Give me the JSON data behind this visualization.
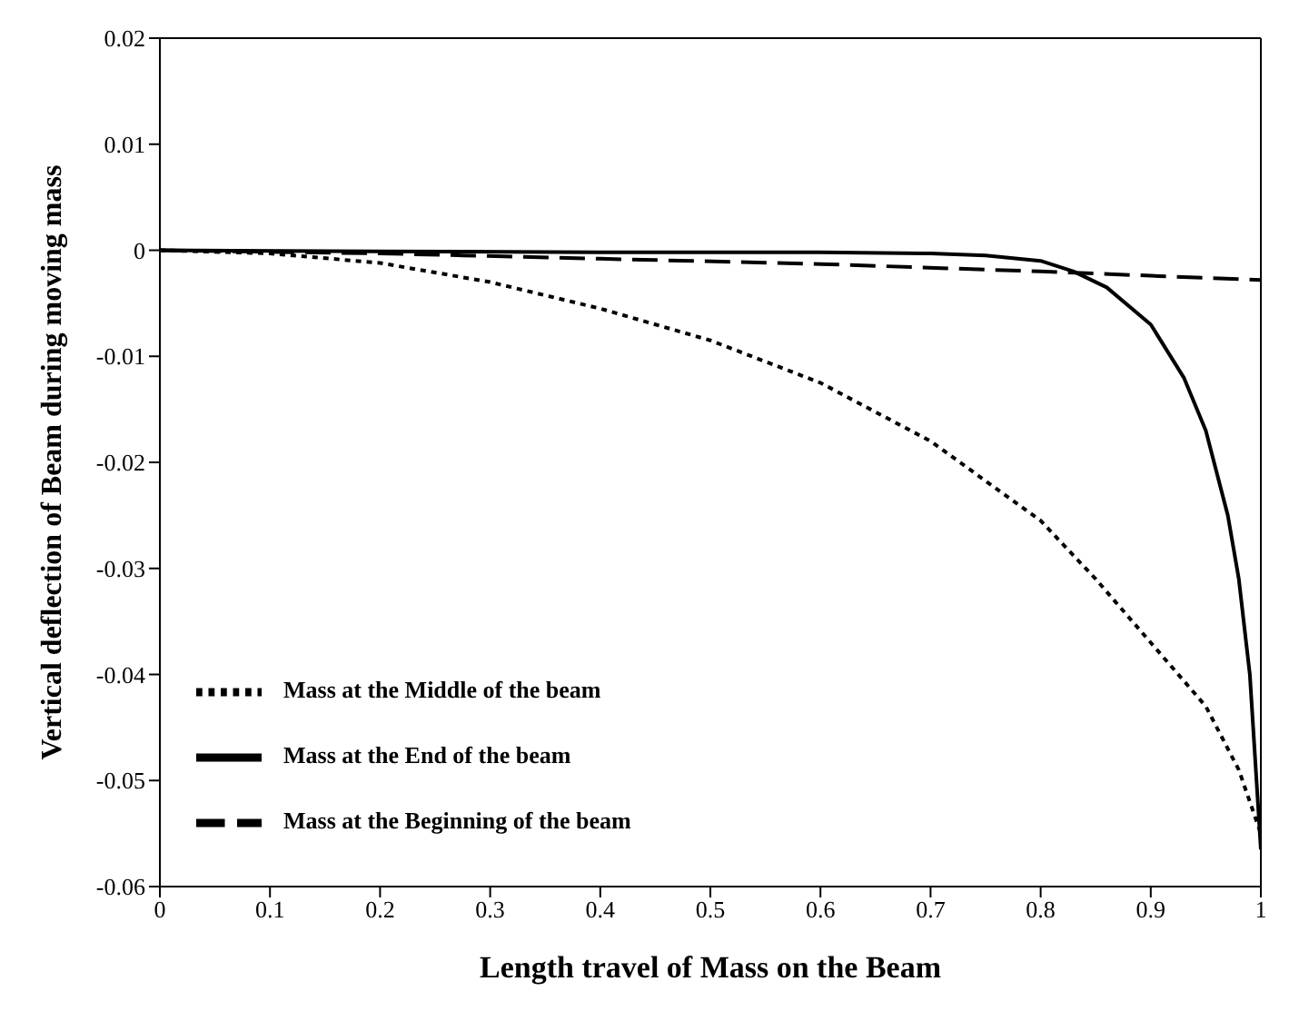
{
  "chart_data": {
    "type": "line",
    "xlabel": "Length travel of Mass on the Beam",
    "ylabel": "Vertical deflection of Beam during moving mass",
    "xlim": [
      0,
      1
    ],
    "xticks": [
      0,
      0.1,
      0.2,
      0.3,
      0.4,
      0.5,
      0.6,
      0.7,
      0.8,
      0.9,
      1
    ],
    "ylim": [
      -0.06,
      0.02
    ],
    "yticks": [
      -0.06,
      -0.05,
      -0.04,
      -0.03,
      -0.02,
      -0.01,
      0,
      0.01,
      0.02
    ],
    "grid": false,
    "legend": "bottom left",
    "marker": "none",
    "series": [
      {
        "name": "Mass at the Middle of the beam",
        "color": "#000000",
        "line_style": "dotted",
        "x": [
          0,
          0.1,
          0.2,
          0.3,
          0.4,
          0.5,
          0.6,
          0.7,
          0.8,
          0.85,
          0.9,
          0.95,
          0.98,
          1
        ],
        "values": [
          0,
          -0.0003,
          -0.0012,
          -0.003,
          -0.0055,
          -0.0085,
          -0.0125,
          -0.018,
          -0.0255,
          -0.031,
          -0.037,
          -0.043,
          -0.049,
          -0.055
        ]
      },
      {
        "name": "Mass at the End of the beam",
        "color": "#000000",
        "line_style": "solid",
        "x": [
          0,
          0.2,
          0.4,
          0.6,
          0.7,
          0.75,
          0.8,
          0.83,
          0.86,
          0.9,
          0.93,
          0.95,
          0.97,
          0.98,
          0.99,
          1
        ],
        "values": [
          0,
          -0.0001,
          -0.0002,
          -0.0002,
          -0.0003,
          -0.0005,
          -0.001,
          -0.002,
          -0.0035,
          -0.007,
          -0.012,
          -0.017,
          -0.025,
          -0.031,
          -0.04,
          -0.0565
        ]
      },
      {
        "name": "Mass at the Beginning of the beam",
        "color": "#000000",
        "line_style": "dashed",
        "x": [
          0,
          0.2,
          0.4,
          0.6,
          0.8,
          1
        ],
        "values": [
          0,
          -0.0003,
          -0.0008,
          -0.0013,
          -0.002,
          -0.0028
        ]
      }
    ]
  }
}
